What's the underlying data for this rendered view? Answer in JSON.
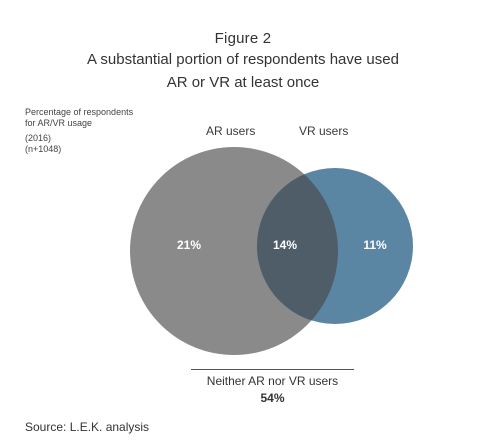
{
  "header": {
    "figure": "Figure 2",
    "title_line1": "A substantial portion of respondents have used",
    "title_line2": "AR or VR at least once"
  },
  "note": {
    "line1": "Percentage of respondents",
    "line2": "for AR/VR usage",
    "line3": "(2016)",
    "line4": "(n+1048)"
  },
  "venn": {
    "sets": [
      {
        "name": "AR users",
        "only_value": "21%",
        "color": "#8a8a8a"
      },
      {
        "name": "VR users",
        "only_value": "11%",
        "color": "#5b86a3"
      }
    ],
    "intersection_value": "14%",
    "intersection_color": "#4e5d68"
  },
  "neither": {
    "label": "Neither AR nor VR users",
    "value": "54%"
  },
  "source": "Source: L.E.K. analysis"
}
